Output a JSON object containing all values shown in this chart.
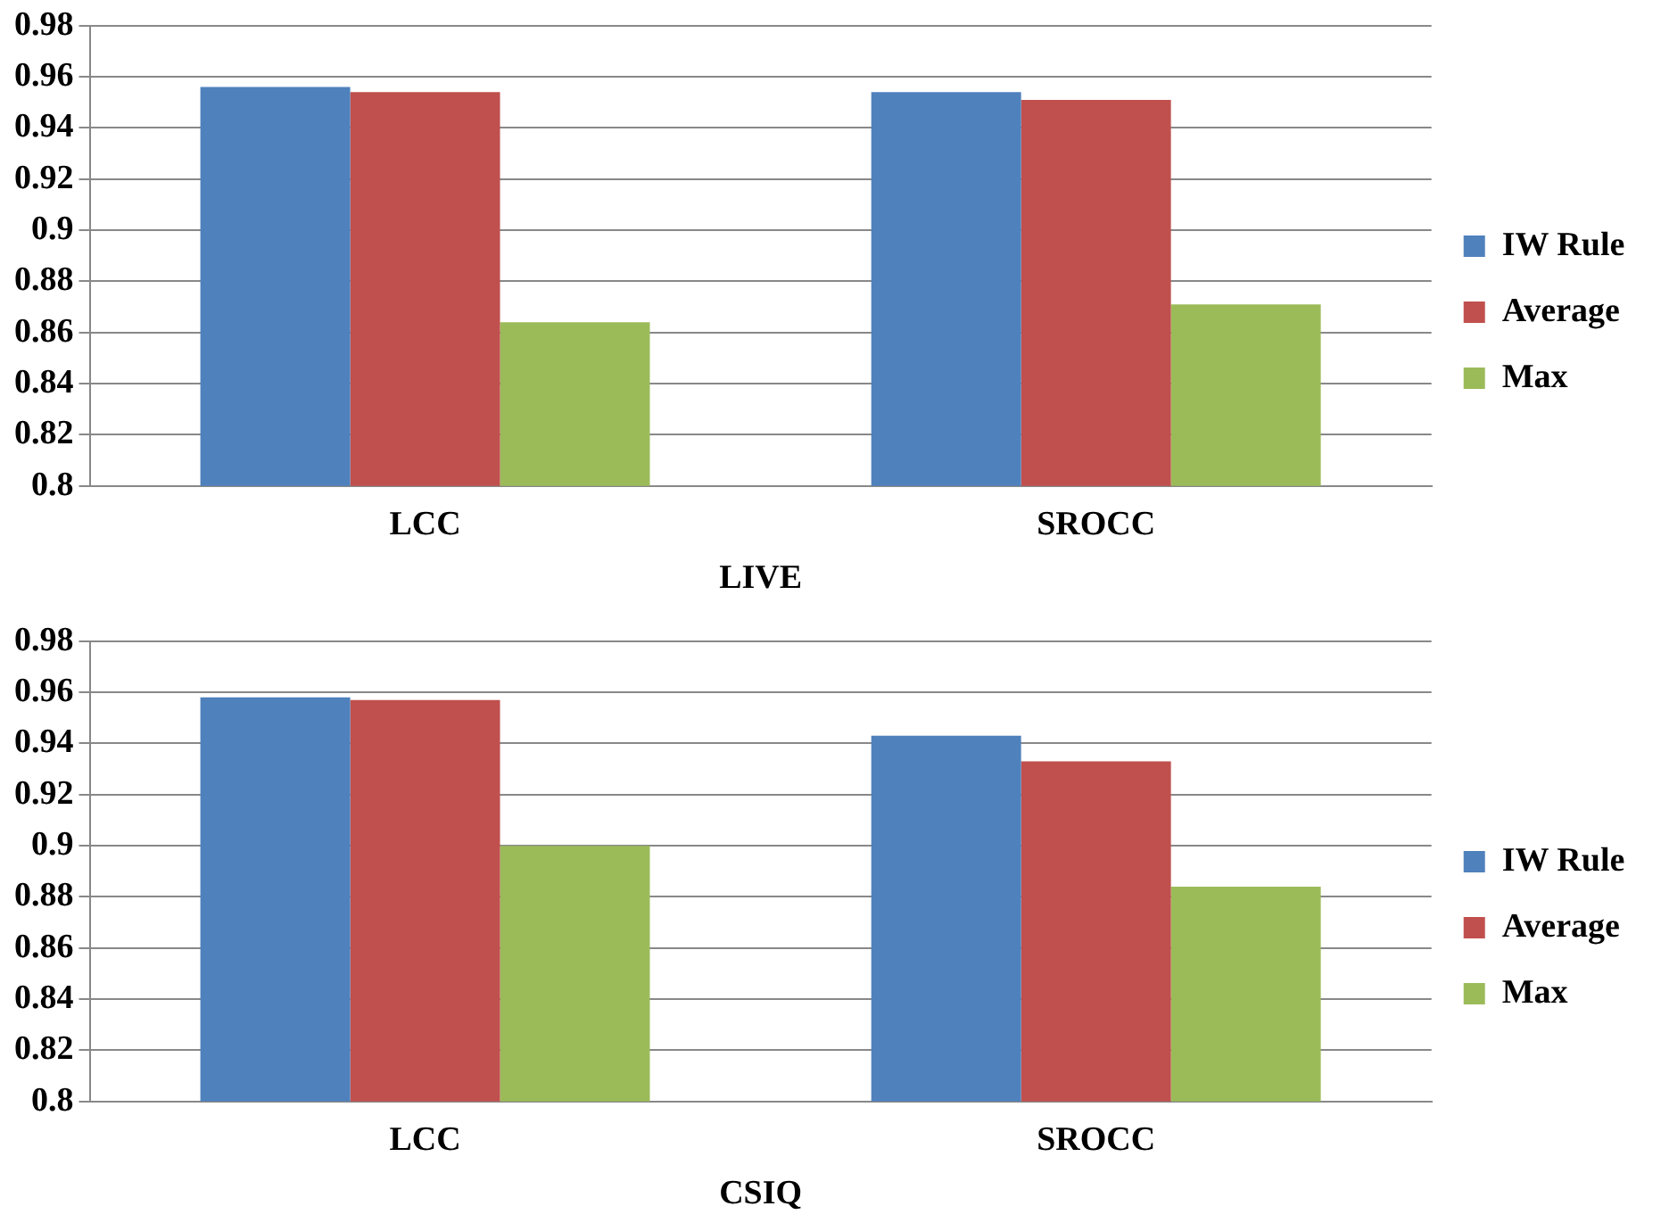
{
  "chart_data": [
    {
      "type": "bar",
      "xlabel": "LIVE",
      "categories": [
        "LCC",
        "SROCC"
      ],
      "series": [
        {
          "name": "IW Rule",
          "color": "#4f81bd",
          "values": [
            0.956,
            0.954
          ]
        },
        {
          "name": "Average",
          "color": "#c0504d",
          "values": [
            0.954,
            0.951
          ]
        },
        {
          "name": "Max",
          "color": "#9bbb59",
          "values": [
            0.864,
            0.871
          ]
        }
      ],
      "ylim": [
        0.8,
        0.98
      ],
      "yticks": [
        0.8,
        0.82,
        0.84,
        0.86,
        0.88,
        0.9,
        0.92,
        0.94,
        0.96,
        0.98
      ],
      "grid": "y",
      "legend": "right"
    },
    {
      "type": "bar",
      "xlabel": "CSIQ",
      "categories": [
        "LCC",
        "SROCC"
      ],
      "series": [
        {
          "name": "IW Rule",
          "color": "#4f81bd",
          "values": [
            0.958,
            0.943
          ]
        },
        {
          "name": "Average",
          "color": "#c0504d",
          "values": [
            0.957,
            0.933
          ]
        },
        {
          "name": "Max",
          "color": "#9bbb59",
          "values": [
            0.9,
            0.884
          ]
        }
      ],
      "ylim": [
        0.8,
        0.98
      ],
      "yticks": [
        0.8,
        0.82,
        0.84,
        0.86,
        0.88,
        0.9,
        0.92,
        0.94,
        0.96,
        0.98
      ],
      "grid": "y",
      "legend": "right"
    }
  ]
}
